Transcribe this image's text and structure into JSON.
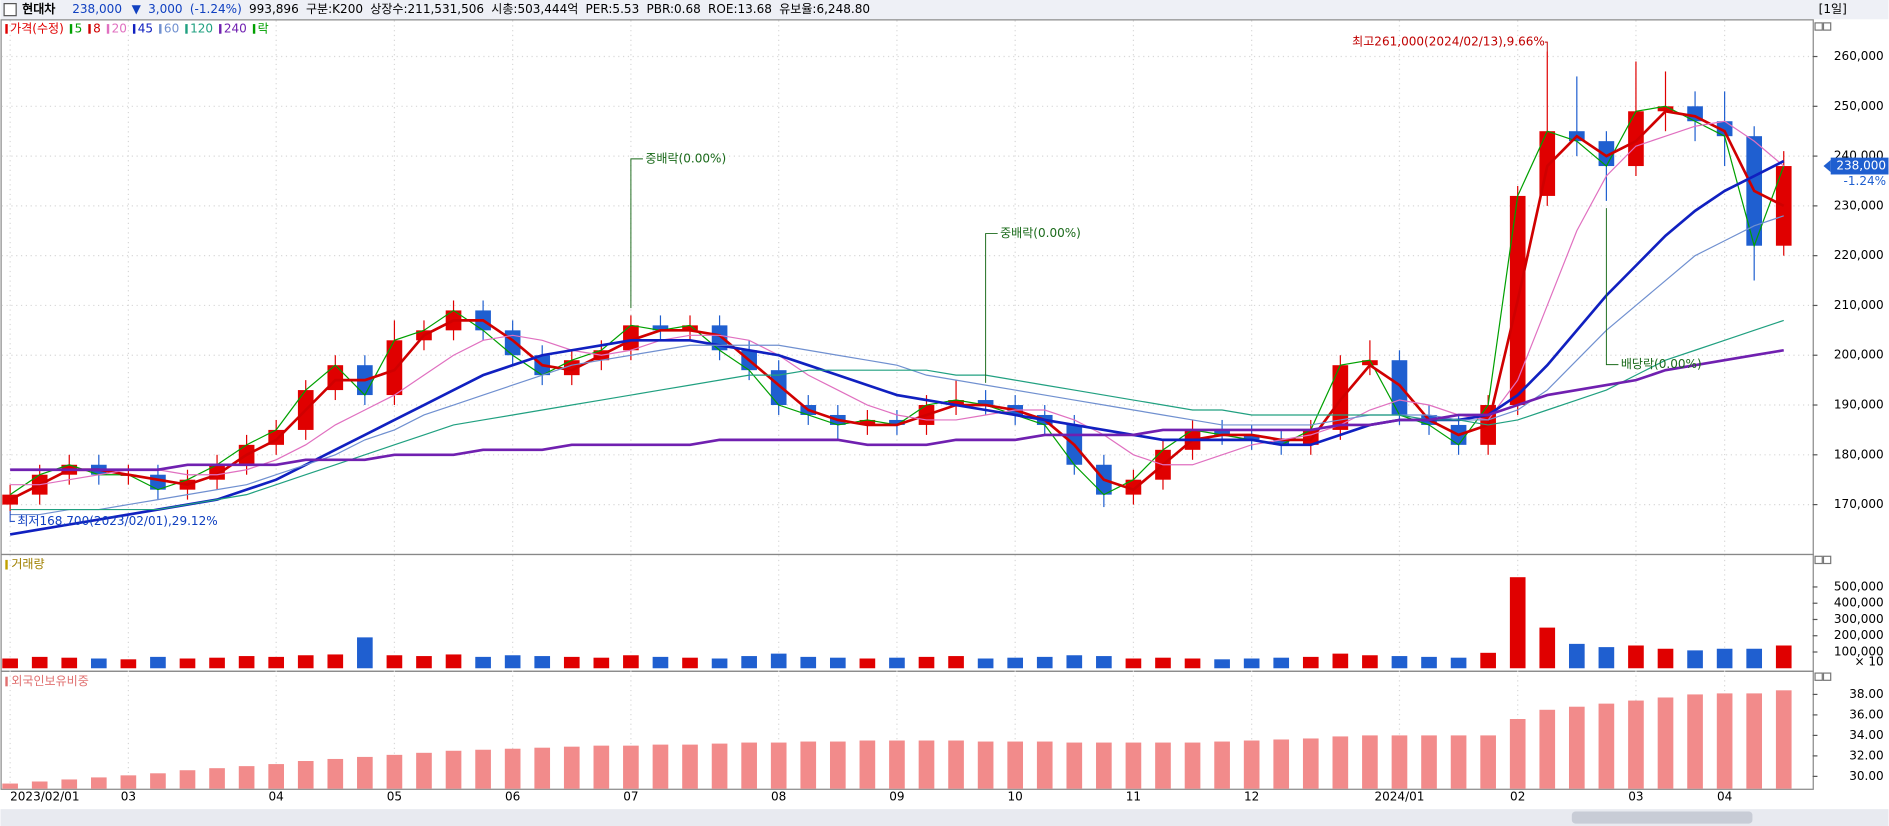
{
  "header": {
    "name": "현대차",
    "items": [
      "238,000",
      "▼",
      "3,000",
      "(-1.24%)",
      "993,896",
      "구분:K200",
      "상장수:211,531,506",
      "시총:503,444억",
      "PER:5.53",
      "PBR:0.68",
      "ROE:13.68",
      "유보율:6,248.80"
    ],
    "period": "[1일]"
  },
  "chart_data": [
    {
      "type": "candlestick",
      "price_label": "가격(수정)",
      "ex_label": "락",
      "categories": [
        "2023/02/01",
        null,
        null,
        null,
        "03",
        null,
        null,
        null,
        null,
        "04",
        null,
        null,
        null,
        "05",
        null,
        null,
        null,
        "06",
        null,
        null,
        null,
        "07",
        null,
        null,
        null,
        null,
        "08",
        null,
        null,
        null,
        "09",
        null,
        null,
        null,
        "10",
        null,
        null,
        null,
        "11",
        null,
        null,
        null,
        "12",
        null,
        null,
        null,
        null,
        "2024/01",
        null,
        null,
        null,
        "02",
        null,
        null,
        null,
        "03",
        null,
        null,
        "04",
        null,
        null
      ],
      "open": [
        170000,
        172000,
        176000,
        178000,
        176000,
        176000,
        173000,
        175000,
        178000,
        182000,
        185000,
        193000,
        198000,
        192000,
        203000,
        205000,
        209000,
        205000,
        200000,
        196000,
        199000,
        201000,
        206000,
        205000,
        206000,
        201000,
        197000,
        190000,
        188000,
        186000,
        187000,
        186000,
        190000,
        191000,
        190000,
        188000,
        186000,
        178000,
        172000,
        175000,
        181000,
        185000,
        184000,
        183000,
        182000,
        185000,
        198000,
        199000,
        188000,
        186000,
        182000,
        190000,
        232000,
        245000,
        243000,
        238000,
        249000,
        250000,
        247000,
        244000,
        222000
      ],
      "high": [
        174000,
        178000,
        180000,
        180000,
        178000,
        178000,
        177000,
        180000,
        184000,
        187000,
        195000,
        200000,
        200000,
        207000,
        207000,
        211000,
        211000,
        207000,
        202000,
        201000,
        203000,
        208000,
        208000,
        208000,
        208000,
        203000,
        199000,
        192000,
        190000,
        189000,
        189000,
        192000,
        195000,
        193000,
        192000,
        190000,
        188000,
        180000,
        177000,
        183000,
        187000,
        187000,
        186000,
        185000,
        187000,
        200000,
        203000,
        201000,
        190000,
        188000,
        192000,
        234000,
        261000,
        256000,
        245000,
        259000,
        257000,
        253000,
        253000,
        246000,
        241000
      ],
      "low": [
        168700,
        170000,
        174000,
        174000,
        174000,
        171000,
        171000,
        173000,
        176000,
        180000,
        183000,
        191000,
        190000,
        190000,
        201000,
        203000,
        203000,
        198000,
        194000,
        194000,
        197000,
        199000,
        203000,
        203000,
        199000,
        195000,
        188000,
        186000,
        183000,
        184000,
        184000,
        184000,
        188000,
        188000,
        186000,
        184000,
        176000,
        169500,
        170000,
        173000,
        179000,
        182000,
        181000,
        180000,
        180000,
        183000,
        196000,
        186000,
        184000,
        180000,
        180000,
        188000,
        230000,
        240000,
        231000,
        236000,
        245000,
        243000,
        238000,
        215000,
        220000
      ],
      "close": [
        172000,
        176000,
        178000,
        176000,
        176000,
        173000,
        175000,
        178000,
        182000,
        185000,
        193000,
        198000,
        192000,
        203000,
        205000,
        209000,
        205000,
        200000,
        196000,
        199000,
        201000,
        206000,
        205000,
        206000,
        201000,
        197000,
        190000,
        188000,
        186000,
        187000,
        186000,
        190000,
        191000,
        190000,
        188000,
        186000,
        178000,
        172000,
        175000,
        181000,
        185000,
        184000,
        183000,
        182000,
        185000,
        198000,
        199000,
        188000,
        186000,
        182000,
        190000,
        232000,
        245000,
        243000,
        238000,
        249000,
        250000,
        247000,
        244000,
        222000,
        238000
      ],
      "up_color": "#e00000",
      "down_color": "#1f5fd0",
      "series": [
        {
          "name": "5",
          "color": "#00a000",
          "width": 1,
          "values": [
            172000,
            176000,
            178000,
            176000,
            176000,
            173000,
            175000,
            178000,
            182000,
            185000,
            193000,
            198000,
            192000,
            203000,
            205000,
            209000,
            205000,
            200000,
            196000,
            199000,
            201000,
            206000,
            205000,
            206000,
            201000,
            197000,
            190000,
            188000,
            186000,
            187000,
            186000,
            190000,
            191000,
            190000,
            188000,
            186000,
            178000,
            172000,
            175000,
            181000,
            185000,
            184000,
            183000,
            182000,
            185000,
            198000,
            199000,
            188000,
            186000,
            182000,
            190000,
            232000,
            245000,
            243000,
            238000,
            249000,
            250000,
            247000,
            244000,
            222000,
            238000
          ]
        },
        {
          "name": "8",
          "color": "#d00000",
          "width": 2.2,
          "values": [
            171000,
            174000,
            177000,
            177000,
            176000,
            175000,
            174000,
            176000,
            180000,
            183000,
            189000,
            195000,
            195000,
            197000,
            204000,
            207000,
            207000,
            203000,
            198000,
            197000,
            200000,
            203000,
            205000,
            205000,
            204000,
            199000,
            194000,
            189000,
            187000,
            186000,
            186000,
            188000,
            190000,
            190000,
            189000,
            187000,
            182000,
            175000,
            173000,
            178000,
            183000,
            184000,
            184000,
            183000,
            183000,
            191000,
            198000,
            194000,
            187000,
            184000,
            186000,
            211000,
            238000,
            244000,
            240000,
            243000,
            249000,
            248000,
            245000,
            233000,
            230000
          ]
        },
        {
          "name": "20",
          "color": "#e070c0",
          "width": 1,
          "values": [
            174000,
            174000,
            175000,
            176000,
            177000,
            177000,
            176000,
            176000,
            177000,
            179000,
            182000,
            186000,
            189000,
            192000,
            196000,
            200000,
            203000,
            204000,
            203000,
            201000,
            200000,
            201000,
            203000,
            204000,
            204000,
            203000,
            200000,
            196000,
            193000,
            190000,
            188000,
            187000,
            187000,
            188000,
            189000,
            189000,
            187000,
            184000,
            180000,
            178000,
            178000,
            180000,
            182000,
            183000,
            184000,
            186000,
            189000,
            191000,
            190000,
            188000,
            187000,
            195000,
            210000,
            225000,
            236000,
            242000,
            244000,
            246000,
            247000,
            243000,
            238000
          ]
        },
        {
          "name": "45",
          "color": "#1020c0",
          "width": 2.2,
          "values": [
            164000,
            165000,
            166000,
            167000,
            168000,
            169000,
            170000,
            171000,
            173000,
            175000,
            178000,
            181000,
            184000,
            187000,
            190000,
            193000,
            196000,
            198000,
            200000,
            201000,
            202000,
            203000,
            203000,
            203000,
            202000,
            201000,
            200000,
            198000,
            196000,
            194000,
            192000,
            191000,
            190000,
            189000,
            188000,
            187000,
            186000,
            185000,
            184000,
            183000,
            183000,
            183000,
            183000,
            182000,
            182000,
            184000,
            186000,
            187000,
            187000,
            187000,
            188000,
            192000,
            198000,
            205000,
            212000,
            218000,
            224000,
            229000,
            233000,
            236000,
            239000
          ]
        },
        {
          "name": "60",
          "color": "#7090d0",
          "width": 1,
          "values": [
            168000,
            168000,
            169000,
            169000,
            170000,
            171000,
            172000,
            173000,
            174000,
            176000,
            178000,
            180000,
            183000,
            185000,
            188000,
            190000,
            192000,
            194000,
            196000,
            198000,
            199000,
            200000,
            201000,
            202000,
            202000,
            202000,
            202000,
            201000,
            200000,
            199000,
            198000,
            196000,
            195000,
            194000,
            193000,
            192000,
            191000,
            190000,
            189000,
            188000,
            187000,
            186000,
            186000,
            186000,
            186000,
            187000,
            188000,
            188000,
            188000,
            187000,
            187000,
            189000,
            193000,
            199000,
            205000,
            210000,
            215000,
            220000,
            223000,
            226000,
            228000
          ]
        },
        {
          "name": "120",
          "color": "#20a080",
          "width": 1,
          "values": [
            169000,
            169000,
            169000,
            169000,
            169000,
            169000,
            170000,
            171000,
            172000,
            174000,
            176000,
            178000,
            180000,
            182000,
            184000,
            186000,
            187000,
            188000,
            189000,
            190000,
            191000,
            192000,
            193000,
            194000,
            195000,
            196000,
            196000,
            197000,
            197000,
            197000,
            197000,
            197000,
            196000,
            196000,
            195000,
            194000,
            193000,
            192000,
            191000,
            190000,
            189000,
            189000,
            188000,
            188000,
            188000,
            188000,
            188000,
            188000,
            187000,
            187000,
            186000,
            187000,
            189000,
            191000,
            193000,
            196000,
            199000,
            201000,
            203000,
            205000,
            207000
          ]
        },
        {
          "name": "240",
          "color": "#7020b0",
          "width": 2.2,
          "values": [
            177000,
            177000,
            177000,
            177000,
            177000,
            177000,
            178000,
            178000,
            178000,
            178000,
            179000,
            179000,
            179000,
            180000,
            180000,
            180000,
            181000,
            181000,
            181000,
            182000,
            182000,
            182000,
            182000,
            182000,
            183000,
            183000,
            183000,
            183000,
            183000,
            182000,
            182000,
            182000,
            183000,
            183000,
            183000,
            184000,
            184000,
            184000,
            184000,
            185000,
            185000,
            185000,
            185000,
            185000,
            185000,
            186000,
            186000,
            187000,
            187000,
            188000,
            188000,
            190000,
            192000,
            193000,
            194000,
            195000,
            197000,
            198000,
            199000,
            200000,
            201000
          ]
        }
      ],
      "high_label": "최고261,000(2024/02/13),9.66%",
      "low_label": "최저168,700(2023/02/01),29.12%",
      "event_labels": [
        null,
        null,
        null,
        null,
        null,
        null,
        null,
        null,
        null,
        null,
        null,
        null,
        null,
        null,
        null,
        null,
        null,
        null,
        null,
        null,
        null,
        "중배락(0.00%)",
        null,
        null,
        null,
        null,
        null,
        null,
        null,
        null,
        null,
        null,
        null,
        "중배락(0.00%)",
        null,
        null,
        null,
        null,
        null,
        null,
        null,
        null,
        null,
        null,
        null,
        null,
        null,
        null,
        null,
        null,
        null,
        null,
        null,
        null,
        "배당락(0.00%)",
        null,
        null,
        null,
        null,
        null,
        null
      ],
      "last_label": "238,000",
      "last_change": "-1.24%",
      "ylim": [
        160100,
        267000
      ],
      "yticks": [
        {
          "value": 170000,
          "label": "170,000"
        },
        {
          "value": 180000,
          "label": "180,000"
        },
        {
          "value": 190000,
          "label": "190,000"
        },
        {
          "value": 200000,
          "label": "200,000"
        },
        {
          "value": 210000,
          "label": "210,000"
        },
        {
          "value": 220000,
          "label": "220,000"
        },
        {
          "value": 230000,
          "label": "230,000"
        },
        {
          "value": 240000,
          "label": "240,000"
        },
        {
          "value": 250000,
          "label": "250,000"
        },
        {
          "value": 260000,
          "label": "260,000"
        }
      ],
      "grid": true
    },
    {
      "type": "bar",
      "title": "거래량",
      "multiplier": "× 10",
      "values": [
        60000,
        70000,
        65000,
        60000,
        55000,
        70000,
        60000,
        65000,
        75000,
        70000,
        80000,
        85000,
        190000,
        80000,
        75000,
        85000,
        70000,
        80000,
        75000,
        70000,
        65000,
        80000,
        70000,
        65000,
        60000,
        75000,
        90000,
        70000,
        65000,
        60000,
        65000,
        70000,
        75000,
        60000,
        65000,
        70000,
        80000,
        75000,
        60000,
        65000,
        60000,
        55000,
        60000,
        65000,
        70000,
        90000,
        80000,
        75000,
        70000,
        65000,
        95000,
        560000,
        250000,
        150000,
        130000,
        140000,
        120000,
        110000,
        120000,
        120000,
        140000
      ],
      "ylim": [
        0,
        696000
      ],
      "yticks": [
        {
          "value": 100000,
          "label": "100,000"
        },
        {
          "value": 200000,
          "label": "200,000"
        },
        {
          "value": 300000,
          "label": "300,000"
        },
        {
          "value": 400000,
          "label": "400,000"
        },
        {
          "value": 500000,
          "label": "500,000"
        }
      ]
    },
    {
      "type": "bar",
      "title": "외국인보유비중",
      "color": "#f28b8b",
      "values": [
        29.3,
        29.5,
        29.7,
        29.9,
        30.1,
        30.3,
        30.6,
        30.8,
        31.0,
        31.2,
        31.5,
        31.7,
        31.9,
        32.1,
        32.3,
        32.5,
        32.6,
        32.7,
        32.8,
        32.9,
        33.0,
        33.0,
        33.1,
        33.1,
        33.2,
        33.3,
        33.3,
        33.4,
        33.4,
        33.5,
        33.5,
        33.5,
        33.5,
        33.4,
        33.4,
        33.4,
        33.3,
        33.3,
        33.3,
        33.3,
        33.3,
        33.4,
        33.5,
        33.6,
        33.7,
        33.9,
        34.0,
        34.0,
        34.0,
        34.0,
        34.0,
        35.6,
        36.5,
        36.8,
        37.1,
        37.4,
        37.7,
        38.0,
        38.1,
        38.1,
        38.4
      ],
      "ylim": [
        28.8,
        40.2
      ],
      "yticks": [
        {
          "value": 30,
          "label": "30.00"
        },
        {
          "value": 32,
          "label": "32.00"
        },
        {
          "value": 34,
          "label": "34.00"
        },
        {
          "value": 36,
          "label": "36.00"
        },
        {
          "value": 38,
          "label": "38.00"
        }
      ]
    }
  ]
}
